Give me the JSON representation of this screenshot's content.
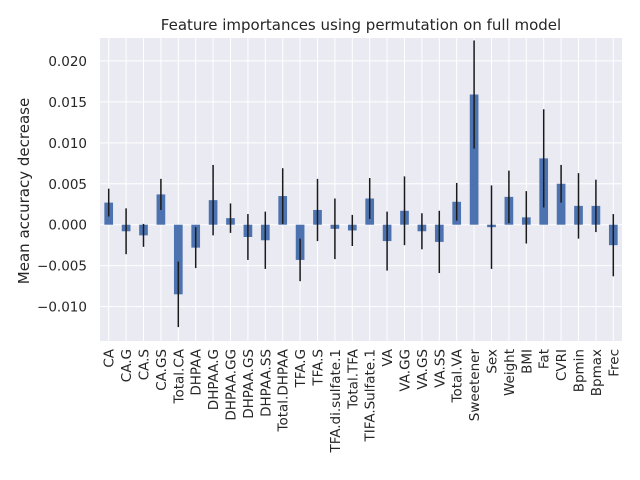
{
  "chart_data": {
    "type": "bar",
    "title": "Feature importances using permutation on full model",
    "xlabel": "",
    "ylabel": "Mean accuracy decrease",
    "ylim": [
      -0.0142,
      0.0228
    ],
    "yticks": [
      -0.01,
      -0.005,
      0.0,
      0.005,
      0.01,
      0.015,
      0.02
    ],
    "ytick_labels": [
      "−0.010",
      "−0.005",
      "0.000",
      "0.005",
      "0.010",
      "0.015",
      "0.020"
    ],
    "grid": true,
    "legend": "none",
    "bar_color": "#4c72b0",
    "errorbar_color": "#1a1a1a",
    "background_color": "#eaeaf2",
    "grid_color": "#ffffff",
    "categories": [
      "CA",
      "CA.G",
      "CA.S",
      "CA.GS",
      "Total.CA",
      "DHPAA",
      "DHPAA.G",
      "DHPAA.GG",
      "DHPAA.GS",
      "DHPAA.SS",
      "Total.DHPAA",
      "TFA.G",
      "TFA.S",
      "TFA.di.sulfate.1",
      "Total.TFA",
      "TIFA.Sulfate.1",
      "VA",
      "VA.GG",
      "VA.GS",
      "VA.SS",
      "Total.VA",
      "Sweetener",
      "Sex",
      "Weight",
      "BMI",
      "Fat",
      "CVRI",
      "Bpmin",
      "Bpmax",
      "Frec"
    ],
    "values": [
      0.0027,
      -0.0008,
      -0.0013,
      0.0037,
      -0.0085,
      -0.0028,
      0.003,
      0.0008,
      -0.0015,
      -0.0019,
      0.0035,
      -0.0043,
      0.0018,
      -0.0005,
      -0.0007,
      0.0032,
      -0.002,
      0.0017,
      -0.0008,
      -0.0021,
      0.0028,
      0.0159,
      -0.0003,
      0.0034,
      0.0009,
      0.0081,
      0.005,
      0.0023,
      0.0023,
      -0.0025
    ],
    "errors": [
      0.0017,
      0.0028,
      0.0014,
      0.0019,
      0.004,
      0.0025,
      0.0043,
      0.0018,
      0.0028,
      0.0035,
      0.0034,
      0.0026,
      0.0038,
      0.0037,
      0.0019,
      0.0025,
      0.0036,
      0.0042,
      0.0022,
      0.0038,
      0.0023,
      0.0066,
      0.0051,
      0.0032,
      0.0032,
      0.006,
      0.0023,
      0.004,
      0.0032,
      0.0038
    ]
  }
}
